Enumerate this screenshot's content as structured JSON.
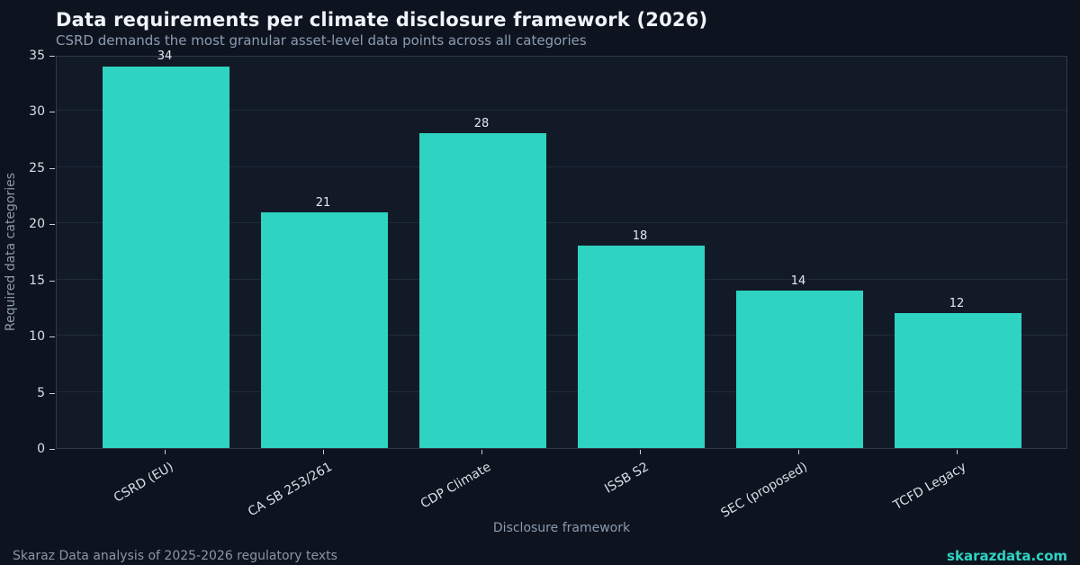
{
  "header": {
    "title": "Data requirements per climate disclosure framework (2026)",
    "subtitle": "CSRD demands the most granular asset-level data points across all categories"
  },
  "chart_data": {
    "type": "bar",
    "title": "Data requirements per climate disclosure framework (2026)",
    "subtitle": "CSRD demands the most granular asset-level data points across all categories",
    "categories": [
      "CSRD (EU)",
      "CA SB 253/261",
      "CDP Climate",
      "ISSB S2",
      "SEC (proposed)",
      "TCFD Legacy"
    ],
    "values": [
      34,
      21,
      28,
      18,
      14,
      12
    ],
    "xlabel": "Disclosure framework",
    "ylabel": "Required data categories",
    "ylim": [
      0,
      35
    ],
    "yticks": [
      0,
      5,
      10,
      15,
      20,
      25,
      30,
      35
    ],
    "grid": true,
    "legend": "none",
    "value_labels": true
  },
  "footer": {
    "source": "Skaraz Data analysis of 2025-2026 regulatory texts",
    "brand": "skarazdata.com"
  },
  "colors": {
    "background": "#0d1420",
    "plot_background": "#121a27",
    "bar": "#2ed3c2",
    "brand_accent": "#2ed3c2",
    "gridline": "#1f2a39"
  }
}
